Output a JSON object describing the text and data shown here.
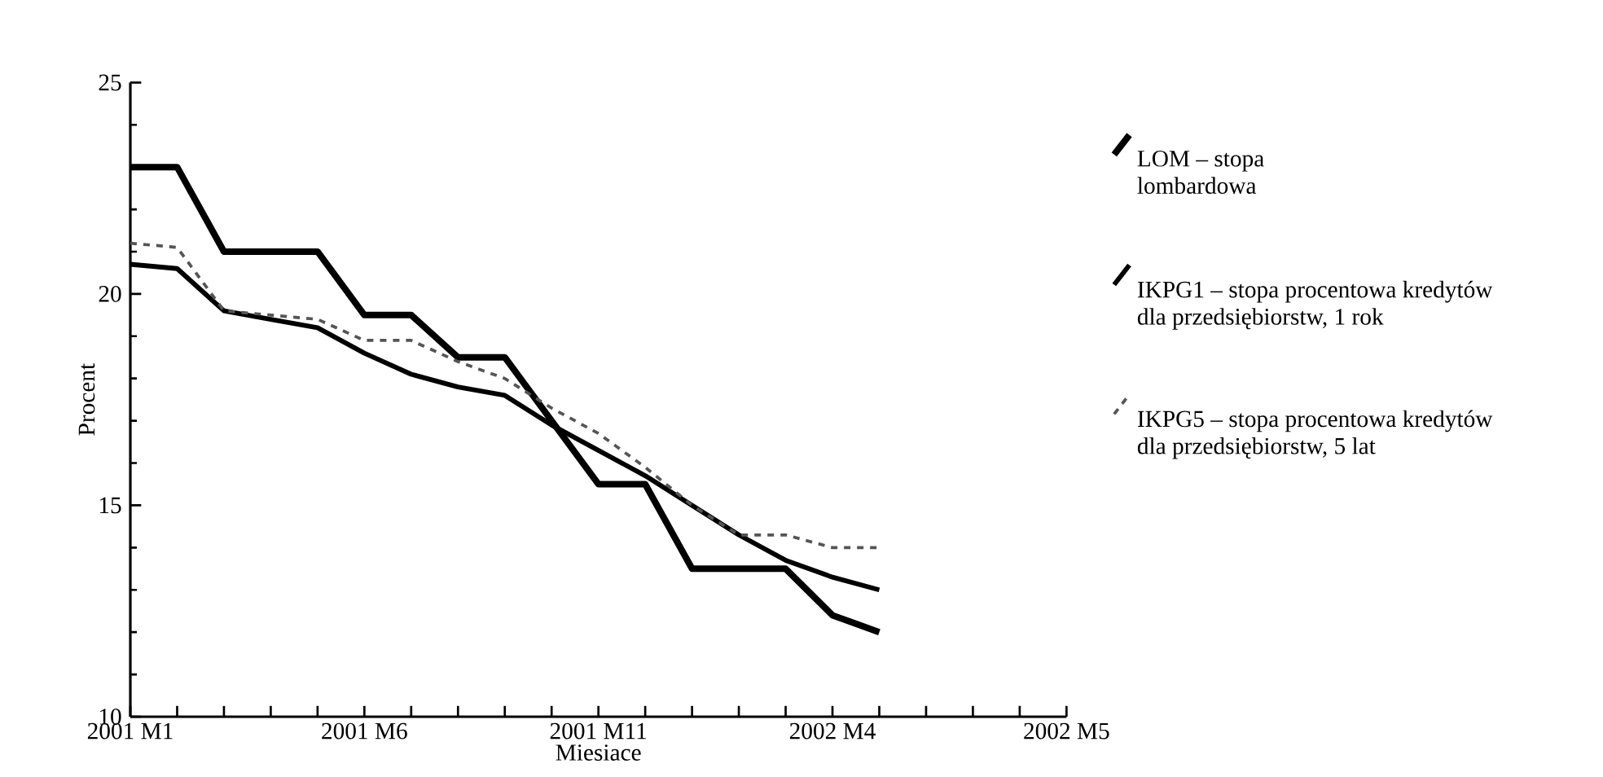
{
  "chart_data": {
    "type": "line",
    "xlabel": "Miesiace",
    "ylabel": "Procent",
    "categories": [
      "2001 M1",
      null,
      null,
      null,
      null,
      "2001 M6",
      null,
      null,
      null,
      null,
      "2001 M11",
      null,
      null,
      null,
      null,
      "2002 M4",
      null,
      null,
      null,
      null,
      "2002 M5"
    ],
    "series": [
      {
        "name": "LOM – stopa lombardowa",
        "color": "#000000",
        "line_style": "solid",
        "values": [
          23.0,
          23.0,
          21.0,
          21.0,
          21.0,
          19.5,
          19.5,
          18.5,
          18.5,
          17.0,
          15.5,
          15.5,
          13.5,
          13.5,
          13.5,
          12.4,
          12.0,
          null,
          null,
          null,
          null
        ]
      },
      {
        "name": "IKPG1 – stopa procentowa kredytów dla przedsiębiorstw, 1 rok",
        "color": "#000000",
        "line_style": "solid",
        "values": [
          20.7,
          20.6,
          19.6,
          19.4,
          19.2,
          18.6,
          18.1,
          17.8,
          17.6,
          16.9,
          16.3,
          15.7,
          15.0,
          14.3,
          13.7,
          13.3,
          13.0,
          null,
          null,
          null,
          null
        ]
      },
      {
        "name": "IKPG5 – stopa procentowa kredytów dla przedsiębiorstw, 5 lat",
        "color": "#555555",
        "line_style": "dashed",
        "values": [
          21.2,
          21.1,
          19.6,
          19.5,
          19.4,
          18.9,
          18.9,
          18.4,
          18.0,
          17.3,
          16.7,
          15.9,
          15.0,
          14.3,
          14.3,
          14.0,
          14.0,
          null,
          null,
          null,
          null
        ]
      }
    ],
    "ylim": [
      10,
      25
    ],
    "yticks": [
      10,
      15,
      20,
      25
    ],
    "grid": false,
    "legend": "right",
    "marker": "none"
  }
}
